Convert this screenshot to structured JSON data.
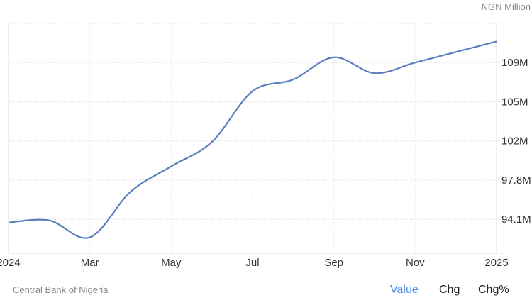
{
  "chart_data": {
    "type": "line",
    "unit_label": "NGN Million",
    "x": [
      "2024-01",
      "2024-02",
      "2024-03",
      "2024-04",
      "2024-05",
      "2024-06",
      "2024-07",
      "2024-08",
      "2024-09",
      "2024-10",
      "2024-11",
      "2024-12",
      "2025-01"
    ],
    "series": [
      {
        "values": [
          93.8,
          94.0,
          92.4,
          96.7,
          99.1,
          101.4,
          106.2,
          107.3,
          109.4,
          107.9,
          108.9,
          109.9,
          110.9
        ],
        "color": "#5b7fbd"
      }
    ],
    "x_ticks": [
      {
        "index": 0,
        "label": "2024"
      },
      {
        "index": 2,
        "label": "Mar"
      },
      {
        "index": 4,
        "label": "May"
      },
      {
        "index": 6,
        "label": "Jul"
      },
      {
        "index": 8,
        "label": "Sep"
      },
      {
        "index": 10,
        "label": "Nov"
      },
      {
        "index": 12,
        "label": "2025"
      }
    ],
    "y_ticks": [
      {
        "value": 94.1,
        "label": "94.1M"
      },
      {
        "value": 97.8,
        "label": "97.8M"
      },
      {
        "value": 101.5,
        "label": "102M"
      },
      {
        "value": 105.2,
        "label": "105M"
      },
      {
        "value": 108.9,
        "label": "109M"
      }
    ],
    "ylim": [
      90.9,
      112.6
    ],
    "grid": true,
    "y_axis_side": "right"
  },
  "footer": {
    "source": "Central Bank of Nigeria",
    "tabs": [
      {
        "label": "Value",
        "active": true
      },
      {
        "label": "Chg"
      },
      {
        "label": "Chg%"
      }
    ],
    "active_color": "#4c8fe0"
  }
}
